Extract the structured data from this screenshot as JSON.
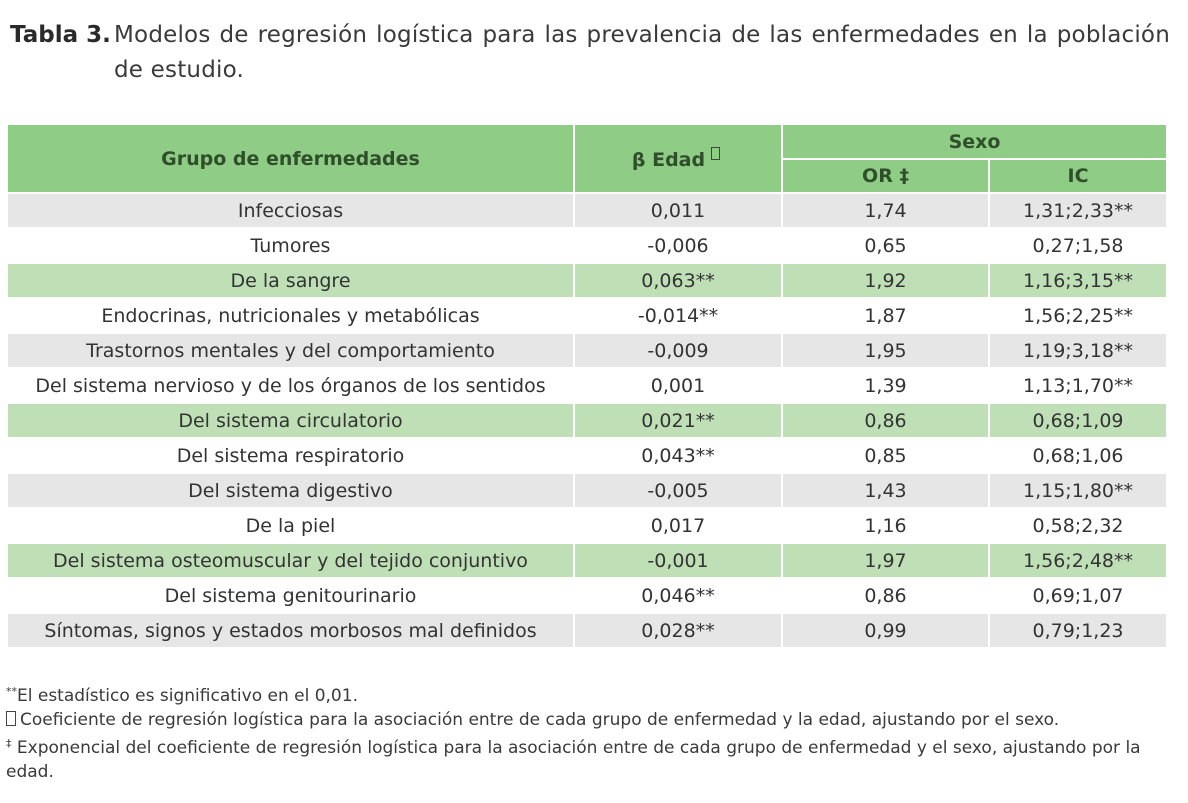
{
  "caption": {
    "label": "Tabla 3.",
    "text": "Modelos de regresión logística para las prevalencia de las enfermedades en la población de estudio."
  },
  "table": {
    "headers": {
      "group": "Grupo de enfermedades",
      "beta": "β Edad",
      "sexo": "Sexo",
      "or": "OR ‡",
      "ic": "IC"
    },
    "rows": [
      {
        "group": "Infecciosas",
        "beta": "0,011",
        "or": "1,74",
        "ic": "1,31;2,33**",
        "style": "gray"
      },
      {
        "group": "Tumores",
        "beta": "-0,006",
        "or": "0,65",
        "ic": "0,27;1,58",
        "style": "white"
      },
      {
        "group": "De la sangre",
        "beta": "0,063**",
        "or": "1,92",
        "ic": "1,16;3,15**",
        "style": "green"
      },
      {
        "group": "Endocrinas, nutricionales y metabólicas",
        "beta": "-0,014**",
        "or": "1,87",
        "ic": "1,56;2,25**",
        "style": "white"
      },
      {
        "group": "Trastornos mentales y del comportamiento",
        "beta": "-0,009",
        "or": "1,95",
        "ic": "1,19;3,18**",
        "style": "gray"
      },
      {
        "group": "Del sistema nervioso y de los órganos de los sentidos",
        "beta": "0,001",
        "or": "1,39",
        "ic": "1,13;1,70**",
        "style": "white"
      },
      {
        "group": "Del sistema circulatorio",
        "beta": "0,021**",
        "or": "0,86",
        "ic": "0,68;1,09",
        "style": "green"
      },
      {
        "group": "Del sistema respiratorio",
        "beta": "0,043**",
        "or": "0,85",
        "ic": "0,68;1,06",
        "style": "white"
      },
      {
        "group": "Del sistema digestivo",
        "beta": "-0,005",
        "or": "1,43",
        "ic": "1,15;1,80**",
        "style": "gray"
      },
      {
        "group": "De la piel",
        "beta": "0,017",
        "or": "1,16",
        "ic": "0,58;2,32",
        "style": "white"
      },
      {
        "group": "Del sistema osteomuscular y del tejido conjuntivo",
        "beta": "-0,001",
        "or": "1,97",
        "ic": "1,56;2,48**",
        "style": "green"
      },
      {
        "group": "Del sistema genitourinario",
        "beta": "0,046**",
        "or": "0,86",
        "ic": "0,69;1,07",
        "style": "white"
      },
      {
        "group": "Síntomas, signos y estados morbosos mal definidos",
        "beta": "0,028**",
        "or": "0,99",
        "ic": "0,79;1,23",
        "style": "gray"
      }
    ]
  },
  "notes": {
    "n1_mark": "**",
    "n1": "El estadístico es significativo en el 0,01.",
    "n2": "Coeficiente de regresión logística para la asociación entre de cada grupo de enfermedad y la edad, ajustando por el sexo.",
    "n3_mark": "‡",
    "n3": " Exponencial del coeficiente de regresión logística para la asociación entre de cada grupo de enfermedad y el sexo, ajustando por la edad."
  },
  "colors": {
    "header_green": "#8fcc86",
    "row_green": "#bfe0b6",
    "row_gray": "#e6e6e6"
  }
}
